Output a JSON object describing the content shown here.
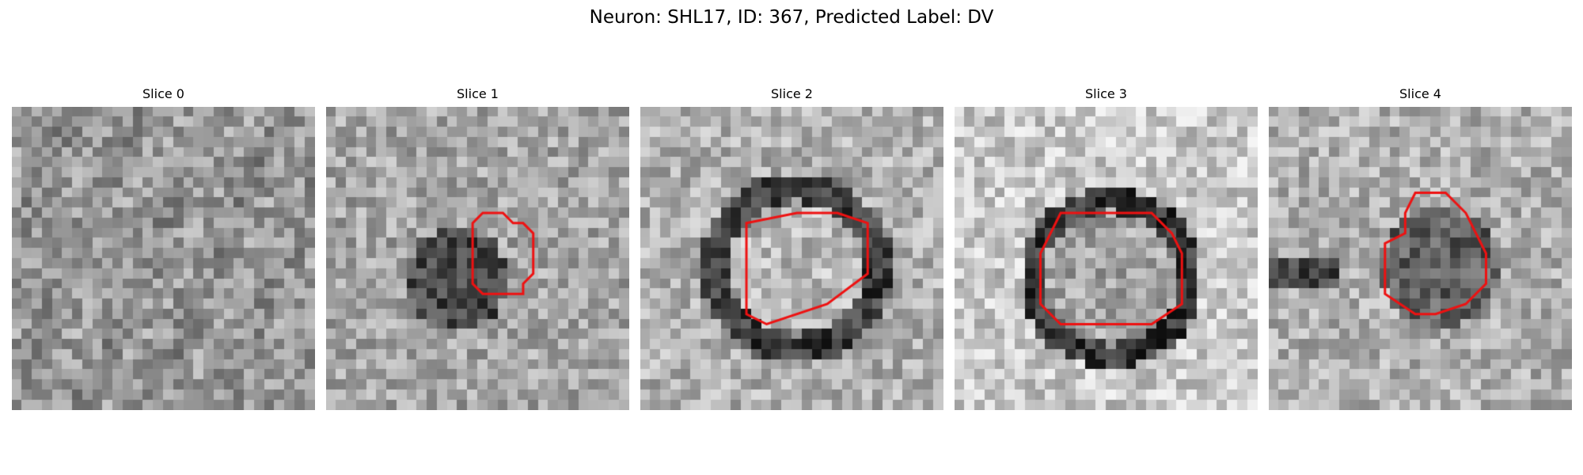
{
  "figure": {
    "suptitle": "Neuron: SHL17, ID: 367, Predicted Label: DV",
    "outline_color": "#ee1111",
    "colormap": "grayscale",
    "panels": [
      {
        "title": "Slice 0",
        "pattern": "noise",
        "outline": []
      },
      {
        "title": "Slice 1",
        "pattern": "dark-blob",
        "outline": [
          [
            15.5,
            10.5
          ],
          [
            17.5,
            10.5
          ],
          [
            18.5,
            11.5
          ],
          [
            19.5,
            11.5
          ],
          [
            20.5,
            12.5
          ],
          [
            20.5,
            16.5
          ],
          [
            19.5,
            17.5
          ],
          [
            19.5,
            18.5
          ],
          [
            15.5,
            18.5
          ],
          [
            14.5,
            17.5
          ],
          [
            14.5,
            11.5
          ]
        ]
      },
      {
        "title": "Slice 2",
        "pattern": "ring",
        "outline": [
          [
            10.5,
            11.5
          ],
          [
            15.5,
            10.5
          ],
          [
            19.5,
            10.5
          ],
          [
            22.5,
            11.5
          ],
          [
            22.5,
            16.5
          ],
          [
            18.5,
            19.5
          ],
          [
            12.5,
            21.5
          ],
          [
            10.5,
            20.5
          ],
          [
            10.5,
            18.5
          ],
          [
            10.5,
            14.5
          ]
        ]
      },
      {
        "title": "Slice 3",
        "pattern": "ring-large",
        "outline": [
          [
            10.5,
            10.5
          ],
          [
            19.5,
            10.5
          ],
          [
            21.5,
            12.5
          ],
          [
            22.5,
            14.5
          ],
          [
            22.5,
            19.5
          ],
          [
            19.5,
            21.5
          ],
          [
            10.5,
            21.5
          ],
          [
            8.5,
            19.5
          ],
          [
            8.5,
            14.5
          ],
          [
            9.5,
            12.5
          ]
        ]
      },
      {
        "title": "Slice 4",
        "pattern": "dark-blob-off",
        "outline": [
          [
            14.5,
            8.5
          ],
          [
            17.5,
            8.5
          ],
          [
            19.5,
            10.5
          ],
          [
            20.5,
            12.5
          ],
          [
            21.5,
            14.5
          ],
          [
            21.5,
            17.5
          ],
          [
            19.5,
            19.5
          ],
          [
            16.5,
            20.5
          ],
          [
            14.5,
            20.5
          ],
          [
            11.5,
            18.5
          ],
          [
            11.5,
            13.5
          ],
          [
            13.5,
            12.5
          ],
          [
            13.5,
            10.5
          ]
        ]
      }
    ]
  }
}
